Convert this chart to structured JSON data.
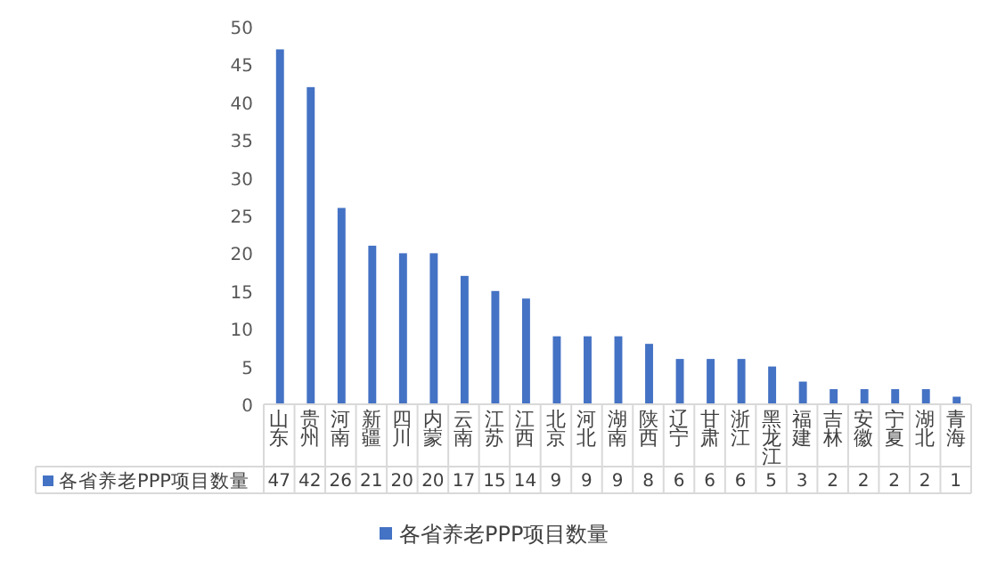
{
  "chart_data": {
    "type": "bar",
    "categories": [
      "山东",
      "贵州",
      "河南",
      "新疆",
      "四川",
      "内蒙",
      "云南",
      "江苏",
      "江西",
      "北京",
      "河北",
      "湖南",
      "陕西",
      "辽宁",
      "甘肃",
      "浙江",
      "黑龙江",
      "福建",
      "吉林",
      "安徽",
      "宁夏",
      "湖北",
      "青海"
    ],
    "series": [
      {
        "name": "各省养老PPP项目数量",
        "color": "#4472c4",
        "values": [
          47,
          42,
          26,
          21,
          20,
          20,
          17,
          15,
          14,
          9,
          9,
          9,
          8,
          6,
          6,
          6,
          5,
          3,
          2,
          2,
          2,
          2,
          1
        ]
      }
    ],
    "ylim": [
      0,
      50
    ],
    "yticks": [
      0,
      5,
      10,
      15,
      20,
      25,
      30,
      35,
      40,
      45,
      50
    ],
    "data_labels": true,
    "legend": "bottom",
    "grid": false
  }
}
